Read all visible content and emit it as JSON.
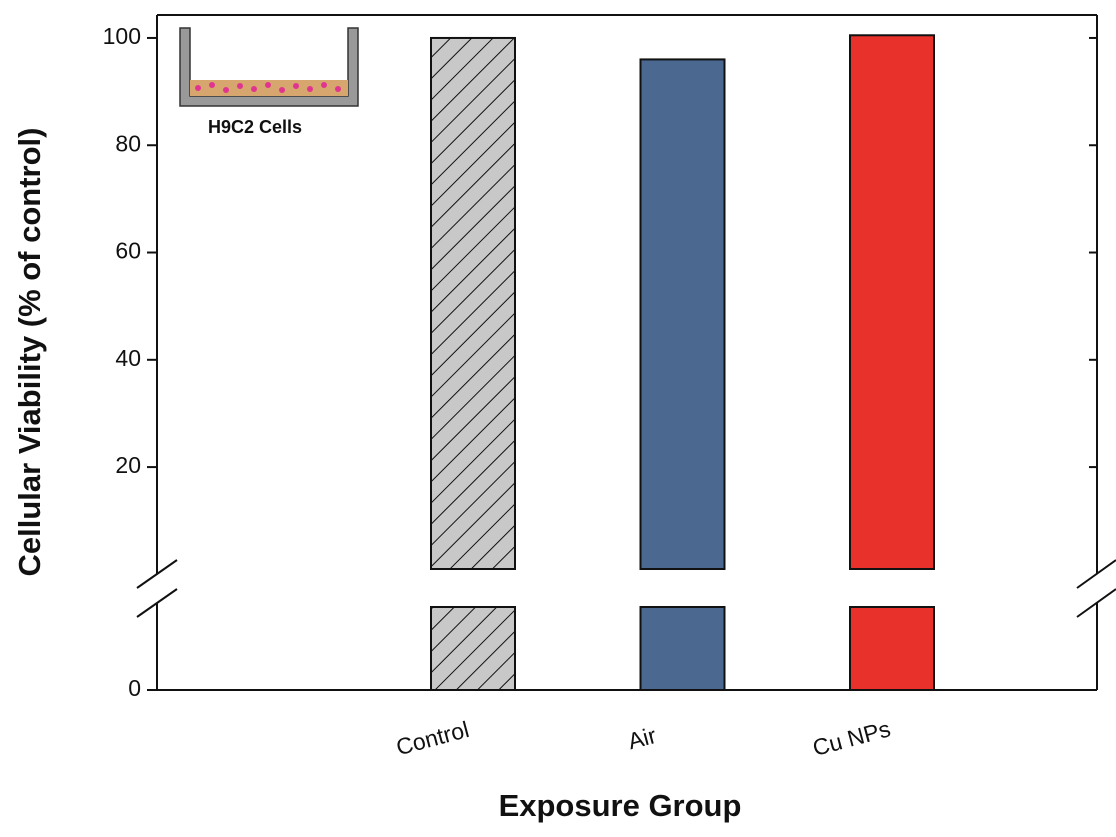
{
  "chart_data": {
    "type": "bar",
    "x_label": "Exposure Group",
    "y_label": "Cellular Viability (% of control)",
    "inset_label": "H9C2 Cells",
    "categories": [
      "Control",
      "Air",
      "Cu NPs"
    ],
    "values": [
      100,
      96,
      100.5
    ],
    "colors": [
      "#c8c8c8",
      "#4a6890",
      "#e8312a"
    ],
    "hatch": [
      true,
      false,
      false
    ],
    "ylim": [
      0,
      104
    ],
    "ybreak": [
      0.5,
      1
    ],
    "yticks": [
      0,
      20,
      40,
      60,
      80,
      100
    ]
  }
}
